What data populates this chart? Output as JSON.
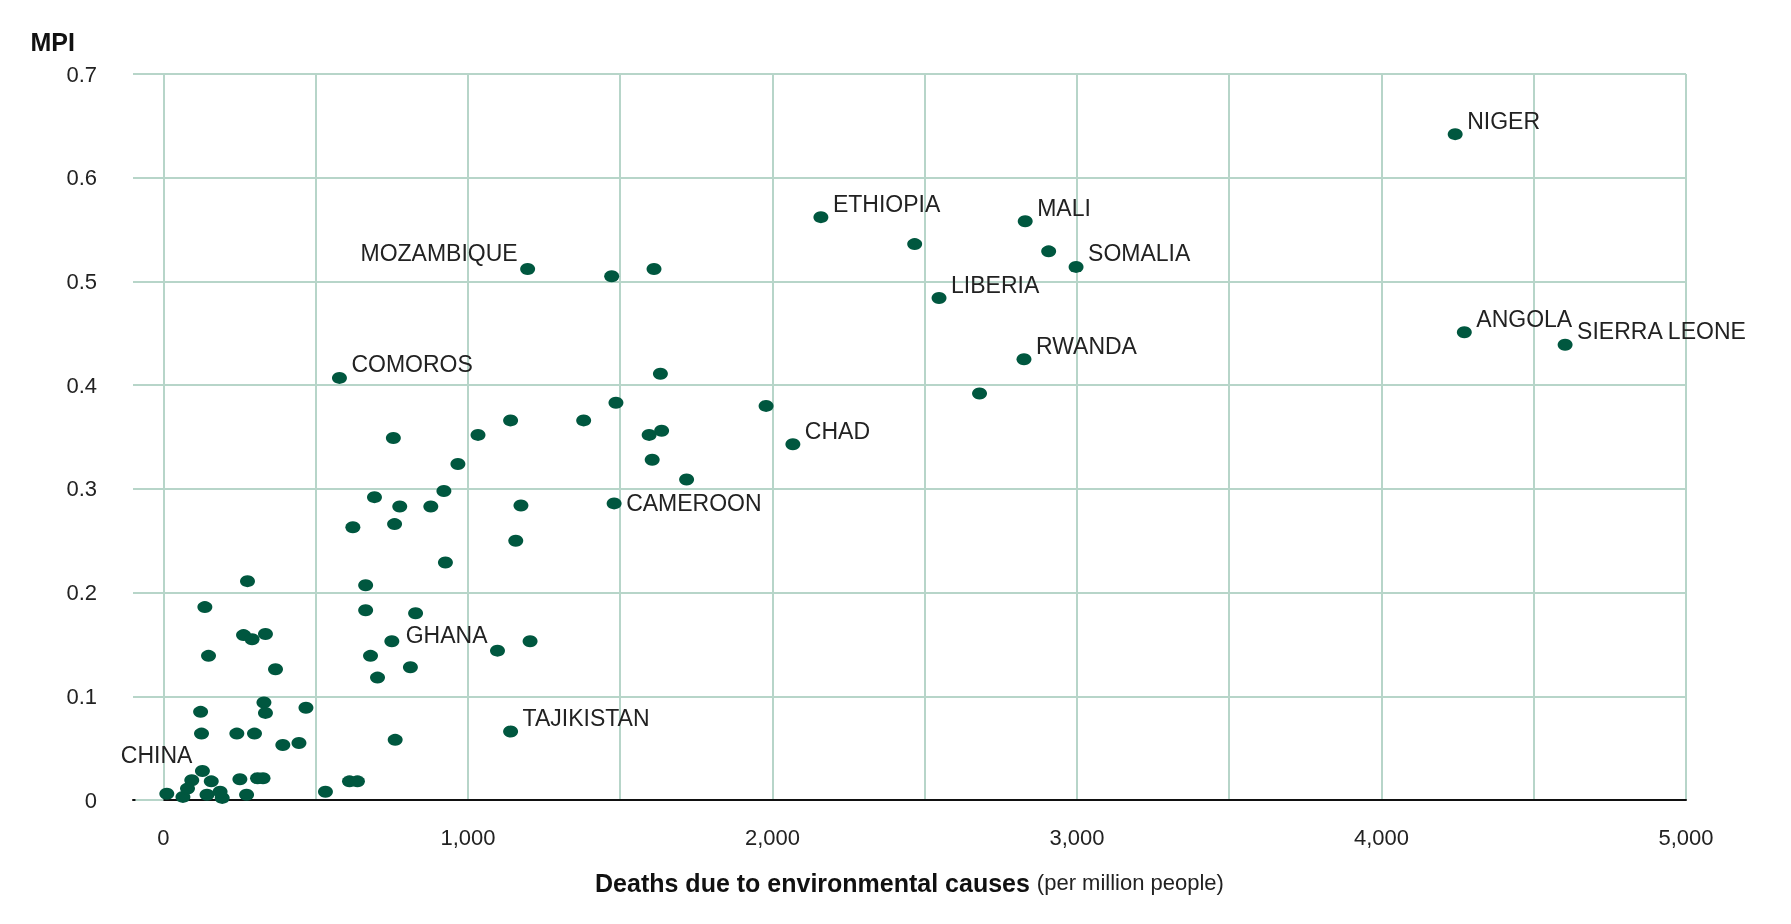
{
  "chart_data": {
    "type": "scatter",
    "xlabel": "Deaths due to environmental causes (per million people)",
    "ylabel": "MPI",
    "xlim": [
      -100,
      5000
    ],
    "ylim": [
      0,
      0.7
    ],
    "xticks": [
      0,
      {
        "value": 500,
        "label": null
      },
      {
        "value": 1000,
        "label": "1,000"
      },
      {
        "value": 1500,
        "label": null
      },
      {
        "value": 2000,
        "label": "2,000"
      },
      {
        "value": 2500,
        "label": null
      },
      {
        "value": 3000,
        "label": "3,000"
      },
      {
        "value": 3500,
        "label": null
      },
      {
        "value": 4000,
        "label": "4,000"
      },
      {
        "value": 4500,
        "label": null
      },
      {
        "value": 5000,
        "label": "5,000"
      }
    ],
    "yticks": [
      0,
      0.1,
      0.2,
      0.3,
      0.4,
      0.5,
      0.6,
      0.7
    ],
    "grid": true,
    "marker": "circle",
    "series": [
      {
        "color": "#00573f",
        "x": [
          4242,
          2830,
          2997,
          4272,
          4603,
          2826,
          2547,
          2159,
          1196,
          578,
          2067,
          1480,
          1097,
          1140,
          128,
          2907,
          2467,
          2680,
          1979,
          1472,
          1611,
          1632,
          1486,
          1380,
          1595,
          1636,
          1605,
          1718,
          1140,
          1033,
          967,
          921,
          878,
          776,
          1174,
          755,
          693,
          759,
          622,
          1157,
          926,
          664,
          664,
          828,
          750,
          680,
          811,
          703,
          1204,
          761,
          136,
          276,
          148,
          263,
          291,
          335,
          368,
          122,
          330,
          335,
          468,
          125,
          241,
          299,
          392,
          445,
          251,
          309,
          327,
          273,
          532,
          611,
          637,
          11,
          64,
          93,
          157,
          143,
          193,
          186,
          79
        ],
        "values": [
          0.642,
          0.558,
          0.514,
          0.451,
          0.439,
          0.425,
          0.484,
          0.562,
          0.512,
          0.407,
          0.343,
          0.286,
          0.144,
          0.066,
          0.028,
          0.529,
          0.536,
          0.392,
          0.38,
          0.505,
          0.512,
          0.411,
          0.383,
          0.366,
          0.352,
          0.356,
          0.328,
          0.309,
          0.366,
          0.352,
          0.324,
          0.298,
          0.283,
          0.283,
          0.284,
          0.349,
          0.292,
          0.266,
          0.263,
          0.25,
          0.229,
          0.207,
          0.183,
          0.18,
          0.153,
          0.139,
          0.128,
          0.118,
          0.153,
          0.058,
          0.186,
          0.211,
          0.139,
          0.159,
          0.155,
          0.16,
          0.126,
          0.085,
          0.094,
          0.084,
          0.089,
          0.064,
          0.064,
          0.064,
          0.053,
          0.055,
          0.02,
          0.021,
          0.021,
          0.005,
          0.008,
          0.018,
          0.018,
          0.006,
          0.003,
          0.019,
          0.018,
          0.005,
          0.002,
          0.008,
          0.011
        ]
      }
    ],
    "annotations": [
      {
        "text": "NIGER",
        "x": 4242,
        "y": 0.642
      },
      {
        "text": "MALI",
        "x": 2830,
        "y": 0.558
      },
      {
        "text": "SOMALIA",
        "x": 2997,
        "y": 0.514
      },
      {
        "text": "ANGOLA",
        "x": 4272,
        "y": 0.451
      },
      {
        "text": "SIERRA LEONE",
        "x": 4603,
        "y": 0.439
      },
      {
        "text": "RWANDA",
        "x": 2826,
        "y": 0.425
      },
      {
        "text": "LIBERIA",
        "x": 2547,
        "y": 0.484
      },
      {
        "text": "ETHIOPIA",
        "x": 2159,
        "y": 0.562
      },
      {
        "text": "MOZAMBIQUE",
        "x": 1196,
        "y": 0.512
      },
      {
        "text": "COMOROS",
        "x": 578,
        "y": 0.407
      },
      {
        "text": "CHAD",
        "x": 2067,
        "y": 0.343
      },
      {
        "text": "CAMEROON",
        "x": 1480,
        "y": 0.286
      },
      {
        "text": "GHANA",
        "x": 1097,
        "y": 0.144
      },
      {
        "text": "TAJIKISTAN",
        "x": 1140,
        "y": 0.066
      },
      {
        "text": "CHINA",
        "x": 128,
        "y": 0.028
      }
    ]
  }
}
